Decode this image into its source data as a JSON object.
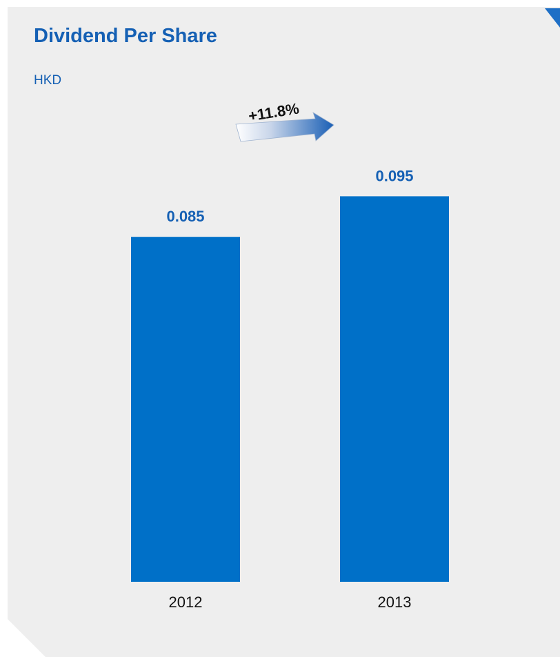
{
  "chart_data": {
    "type": "bar",
    "title": "Dividend Per Share",
    "unit": "HKD",
    "categories": [
      "2012",
      "2013"
    ],
    "values": [
      0.085,
      0.095
    ],
    "value_labels": [
      "0.085",
      "0.095"
    ],
    "growth_annotation": "+11.8%",
    "ylim": [
      0,
      0.12
    ],
    "grid": false,
    "legend": "none",
    "bar_color": "#0070c8"
  }
}
